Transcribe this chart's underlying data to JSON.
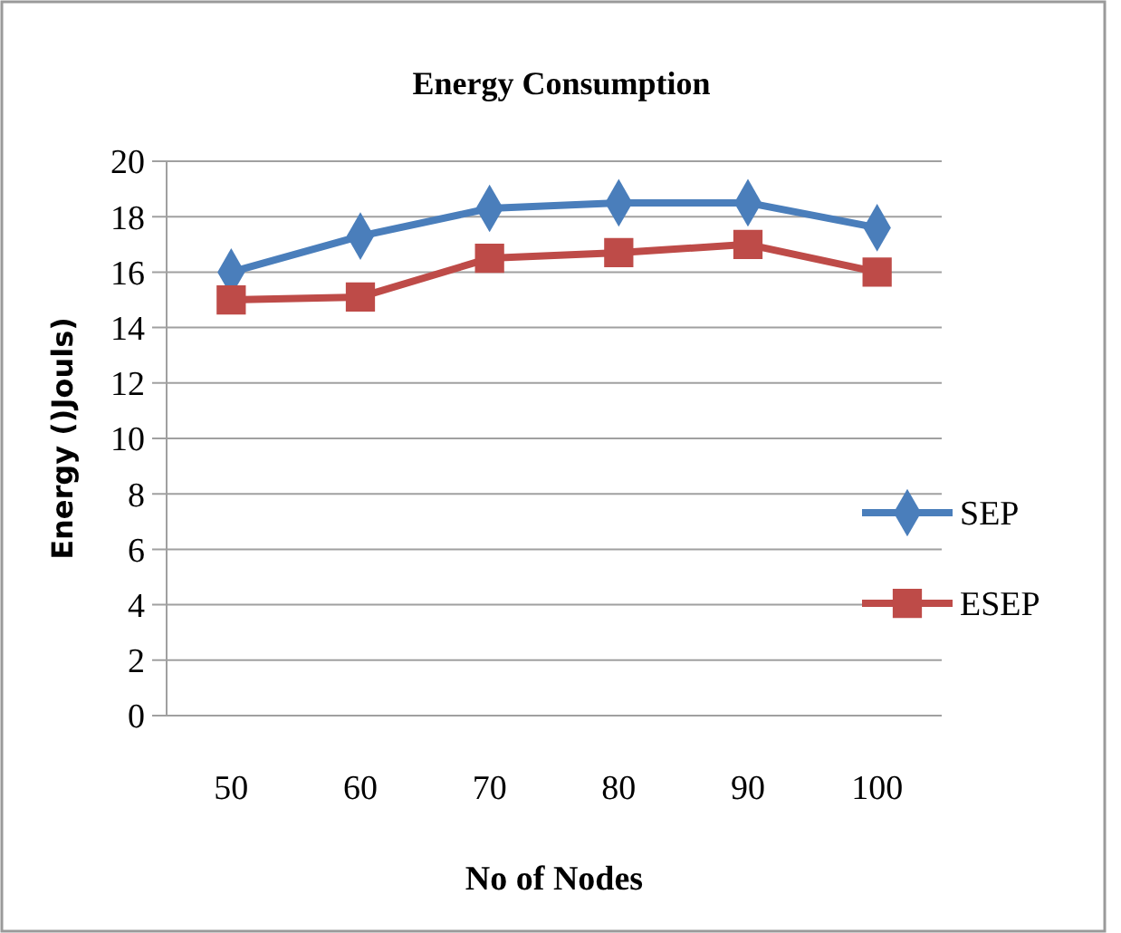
{
  "chart_data": {
    "type": "line",
    "title": "Energy Consumption",
    "xlabel": "No of  Nodes",
    "ylabel": "Energy ()Jouls)",
    "categories": [
      "50",
      "60",
      "70",
      "80",
      "90",
      "100"
    ],
    "series": [
      {
        "name": "SEP",
        "color": "#4a7ebb",
        "marker": "diamond",
        "values": [
          16.0,
          17.3,
          18.3,
          18.5,
          18.5,
          17.6
        ]
      },
      {
        "name": "ESEP",
        "color": "#be4b48",
        "marker": "square",
        "values": [
          15.0,
          15.1,
          16.5,
          16.7,
          17.0,
          16.0
        ]
      }
    ],
    "ylim": [
      0,
      20
    ],
    "yticks": [
      0,
      2,
      4,
      6,
      8,
      10,
      12,
      14,
      16,
      18,
      20
    ],
    "grid": "y",
    "legend": "right"
  }
}
